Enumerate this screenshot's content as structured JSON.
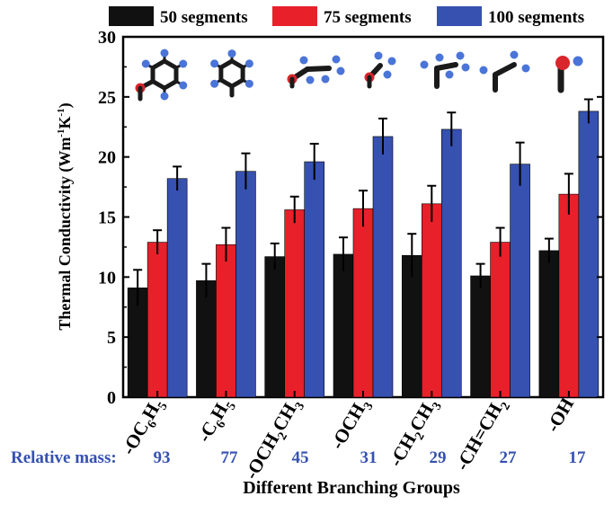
{
  "chart_data": {
    "type": "bar",
    "xlabel": "Different Branching Groups",
    "ylabel": "Thermal Conductivity (Wm",
    "ylabel_sup1": "-1",
    "ylabel_mid": "K",
    "ylabel_sup2": "-1",
    "ylabel_close": ")",
    "ylim": [
      0,
      30
    ],
    "yticks": [
      "0",
      "5",
      "10",
      "15",
      "20",
      "25",
      "30"
    ],
    "categories": [
      "-OC6H5",
      "-C6H5",
      "-OCH2CH3",
      "-OCH3",
      "-CH2CH3",
      "-CH=CH2",
      "-OH"
    ],
    "category_labels": [
      [
        {
          "t": "-OC",
          "s": false
        },
        {
          "t": "6",
          "s": true
        },
        {
          "t": "H",
          "s": false
        },
        {
          "t": "5",
          "s": true
        }
      ],
      [
        {
          "t": "-C",
          "s": false
        },
        {
          "t": "6",
          "s": true
        },
        {
          "t": "H",
          "s": false
        },
        {
          "t": "5",
          "s": true
        }
      ],
      [
        {
          "t": "-OCH",
          "s": false
        },
        {
          "t": "2",
          "s": true
        },
        {
          "t": "CH",
          "s": false
        },
        {
          "t": "3",
          "s": true
        }
      ],
      [
        {
          "t": "-OCH",
          "s": false
        },
        {
          "t": "3",
          "s": true
        }
      ],
      [
        {
          "t": "-CH",
          "s": false
        },
        {
          "t": "2",
          "s": true
        },
        {
          "t": "CH",
          "s": false
        },
        {
          "t": "3",
          "s": true
        }
      ],
      [
        {
          "t": "-CH=CH",
          "s": false
        },
        {
          "t": "2",
          "s": true
        }
      ],
      [
        {
          "t": "-OH",
          "s": false
        }
      ]
    ],
    "series": [
      {
        "name": "50 segments",
        "color": "#111111",
        "values": [
          9.1,
          9.7,
          11.7,
          11.9,
          11.8,
          10.1,
          12.2
        ],
        "errors": [
          1.5,
          1.4,
          1.1,
          1.4,
          1.8,
          1.0,
          1.0
        ]
      },
      {
        "name": "75 segments",
        "color": "#e8202a",
        "values": [
          12.9,
          12.7,
          15.6,
          15.7,
          16.1,
          12.9,
          16.9
        ],
        "errors": [
          1.0,
          1.4,
          1.1,
          1.5,
          1.5,
          1.2,
          1.7
        ]
      },
      {
        "name": "100 segments",
        "color": "#3651b0",
        "values": [
          18.2,
          18.8,
          19.6,
          21.7,
          22.3,
          19.4,
          23.8
        ],
        "errors": [
          1.0,
          1.5,
          1.5,
          1.5,
          1.4,
          1.8,
          1.0
        ]
      }
    ],
    "legend_position": "top",
    "relative_mass": {
      "label": "Relative mass:",
      "values": [
        "93",
        "77",
        "45",
        "31",
        "29",
        "27",
        "17"
      ],
      "color": "#3651b0"
    },
    "molecule_icons": [
      "phenoxy-molecule-icon",
      "phenyl-molecule-icon",
      "ethoxy-molecule-icon",
      "methoxy-molecule-icon",
      "ethyl-molecule-icon",
      "vinyl-molecule-icon",
      "hydroxyl-molecule-icon"
    ]
  }
}
